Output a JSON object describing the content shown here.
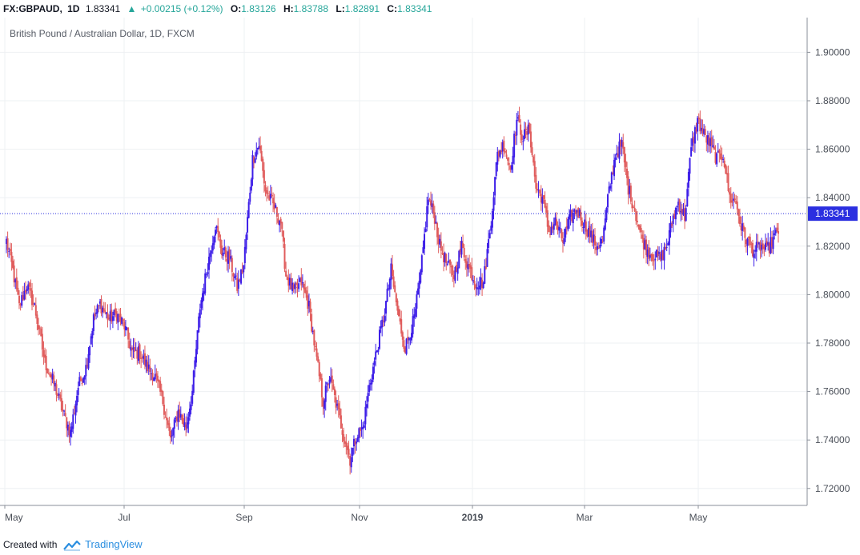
{
  "header": {
    "symbol": "FX:GBPAUD,",
    "timeframe": "1D",
    "last": "1.83341",
    "change_arrow": "▲",
    "change": "+0.00215 (+0.12%)",
    "open_label": "O:",
    "open": "1.83126",
    "high_label": "H:",
    "high": "1.83788",
    "low_label": "L:",
    "low": "1.82891",
    "close_label": "C:",
    "close": "1.83341"
  },
  "footer": {
    "created_with": "Created with",
    "brand": "TradingView"
  },
  "colors": {
    "up": "#3d1ee8",
    "down": "#e05c5c",
    "grid": "#eef0f3",
    "last_line": "#2b2fe0",
    "last_badge": "#2b2fe0",
    "positive_text": "#26a69a"
  },
  "chart_data": {
    "type": "candlestick",
    "title": "British Pound / Australian Dollar, 1D, FXCM",
    "x_labels": [
      "May",
      "Jul",
      "Sep",
      "Nov",
      "2019",
      "Mar",
      "May"
    ],
    "y_ticks": [
      "1.72000",
      "1.74000",
      "1.76000",
      "1.78000",
      "1.80000",
      "1.82000",
      "1.84000",
      "1.86000",
      "1.88000",
      "1.90000"
    ],
    "ylim": [
      1.713,
      1.913
    ],
    "grid": true,
    "last_price": 1.83341,
    "last_price_label": "1.83341",
    "close_path": [
      [
        0,
        1.822
      ],
      [
        5,
        1.81
      ],
      [
        10,
        1.795
      ],
      [
        16,
        1.804
      ],
      [
        22,
        1.795
      ],
      [
        30,
        1.772
      ],
      [
        38,
        1.762
      ],
      [
        45,
        1.75
      ],
      [
        50,
        1.743
      ],
      [
        56,
        1.762
      ],
      [
        62,
        1.77
      ],
      [
        68,
        1.79
      ],
      [
        73,
        1.796
      ],
      [
        80,
        1.79
      ],
      [
        86,
        1.792
      ],
      [
        92,
        1.787
      ],
      [
        98,
        1.776
      ],
      [
        104,
        1.776
      ],
      [
        110,
        1.77
      ],
      [
        116,
        1.766
      ],
      [
        122,
        1.756
      ],
      [
        128,
        1.74
      ],
      [
        134,
        1.752
      ],
      [
        140,
        1.745
      ],
      [
        145,
        1.76
      ],
      [
        151,
        1.795
      ],
      [
        158,
        1.815
      ],
      [
        163,
        1.829
      ],
      [
        168,
        1.818
      ],
      [
        174,
        1.815
      ],
      [
        180,
        1.803
      ],
      [
        185,
        1.812
      ],
      [
        192,
        1.856
      ],
      [
        197,
        1.862
      ],
      [
        202,
        1.843
      ],
      [
        208,
        1.837
      ],
      [
        214,
        1.83
      ],
      [
        218,
        1.808
      ],
      [
        224,
        1.801
      ],
      [
        230,
        1.805
      ],
      [
        236,
        1.795
      ],
      [
        242,
        1.773
      ],
      [
        247,
        1.756
      ],
      [
        252,
        1.766
      ],
      [
        258,
        1.753
      ],
      [
        263,
        1.742
      ],
      [
        268,
        1.732
      ],
      [
        273,
        1.742
      ],
      [
        278,
        1.745
      ],
      [
        283,
        1.762
      ],
      [
        290,
        1.78
      ],
      [
        295,
        1.793
      ],
      [
        300,
        1.81
      ],
      [
        306,
        1.79
      ],
      [
        311,
        1.778
      ],
      [
        318,
        1.79
      ],
      [
        323,
        1.808
      ],
      [
        329,
        1.84
      ],
      [
        334,
        1.832
      ],
      [
        338,
        1.82
      ],
      [
        344,
        1.812
      ],
      [
        349,
        1.808
      ],
      [
        355,
        1.82
      ],
      [
        360,
        1.812
      ],
      [
        366,
        1.805
      ],
      [
        372,
        1.805
      ],
      [
        377,
        1.826
      ],
      [
        383,
        1.858
      ],
      [
        388,
        1.862
      ],
      [
        393,
        1.852
      ],
      [
        398,
        1.872
      ],
      [
        403,
        1.865
      ],
      [
        408,
        1.868
      ],
      [
        413,
        1.844
      ],
      [
        418,
        1.84
      ],
      [
        423,
        1.826
      ],
      [
        428,
        1.83
      ],
      [
        434,
        1.822
      ],
      [
        440,
        1.832
      ],
      [
        445,
        1.835
      ],
      [
        450,
        1.83
      ],
      [
        455,
        1.825
      ],
      [
        460,
        1.82
      ],
      [
        465,
        1.822
      ],
      [
        470,
        1.843
      ],
      [
        475,
        1.858
      ],
      [
        480,
        1.862
      ],
      [
        485,
        1.844
      ],
      [
        490,
        1.835
      ],
      [
        495,
        1.824
      ],
      [
        500,
        1.818
      ],
      [
        505,
        1.816
      ],
      [
        510,
        1.815
      ],
      [
        515,
        1.82
      ],
      [
        520,
        1.832
      ],
      [
        524,
        1.838
      ],
      [
        529,
        1.832
      ],
      [
        534,
        1.86
      ],
      [
        539,
        1.872
      ],
      [
        544,
        1.866
      ],
      [
        549,
        1.862
      ],
      [
        554,
        1.856
      ],
      [
        559,
        1.858
      ],
      [
        564,
        1.84
      ],
      [
        569,
        1.838
      ],
      [
        573,
        1.828
      ],
      [
        578,
        1.822
      ],
      [
        583,
        1.818
      ],
      [
        588,
        1.82
      ],
      [
        593,
        1.818
      ],
      [
        597,
        1.822
      ],
      [
        602,
        1.826
      ]
    ]
  }
}
